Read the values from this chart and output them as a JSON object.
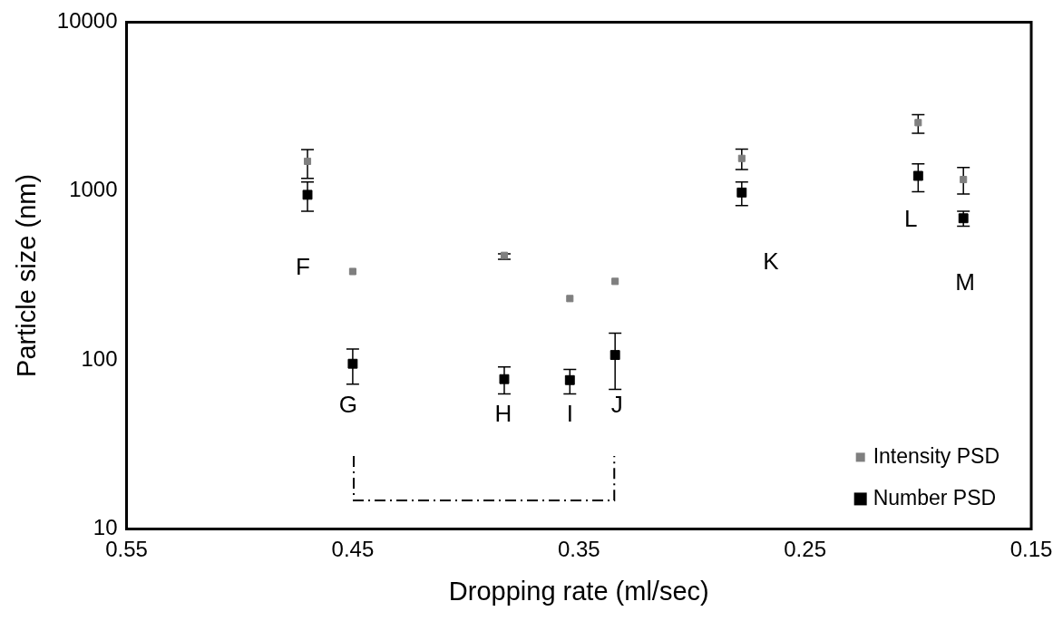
{
  "chart_data": {
    "type": "scatter",
    "xlabel": "Dropping rate (ml/sec)",
    "ylabel": "Particle size (nm)",
    "log": "y",
    "grid": false,
    "legend": "bottom right",
    "xlim": [
      0.55,
      0.15
    ],
    "xticks": [
      0.55,
      0.45,
      0.35,
      0.25,
      0.15
    ],
    "ylim": [
      10,
      10000
    ],
    "yticks": [
      10,
      100,
      1000,
      10000
    ],
    "series": [
      {
        "name": "Intensity PSD",
        "color": "#7f7f7f",
        "marker": "square",
        "x": [
          0.47,
          0.45,
          0.383,
          0.354,
          0.334,
          0.278,
          0.2,
          0.18
        ],
        "values": [
          1500,
          334,
          416,
          231,
          292,
          1560,
          2540,
          1170
        ],
        "errors": [
          [
            1190,
            1760
          ],
          null,
          [
            395,
            425
          ],
          null,
          null,
          [
            1340,
            1770
          ],
          [
            2200,
            2830
          ],
          [
            960,
            1380
          ]
        ]
      },
      {
        "name": "Number PSD",
        "color": "#000000",
        "marker": "square",
        "x": [
          0.47,
          0.45,
          0.383,
          0.354,
          0.334,
          0.278,
          0.2,
          0.18
        ],
        "values": [
          950,
          95,
          77,
          76,
          107,
          980,
          1230,
          690
        ],
        "errors": [
          [
            760,
            1130
          ],
          [
            72,
            116
          ],
          [
            63,
            91
          ],
          [
            63,
            88
          ],
          [
            67,
            144
          ],
          [
            820,
            1130
          ],
          [
            990,
            1450
          ],
          [
            620,
            760
          ]
        ]
      }
    ],
    "annotations": [
      "F",
      "G",
      "H",
      "I",
      "J",
      "K",
      "L",
      "M"
    ]
  }
}
